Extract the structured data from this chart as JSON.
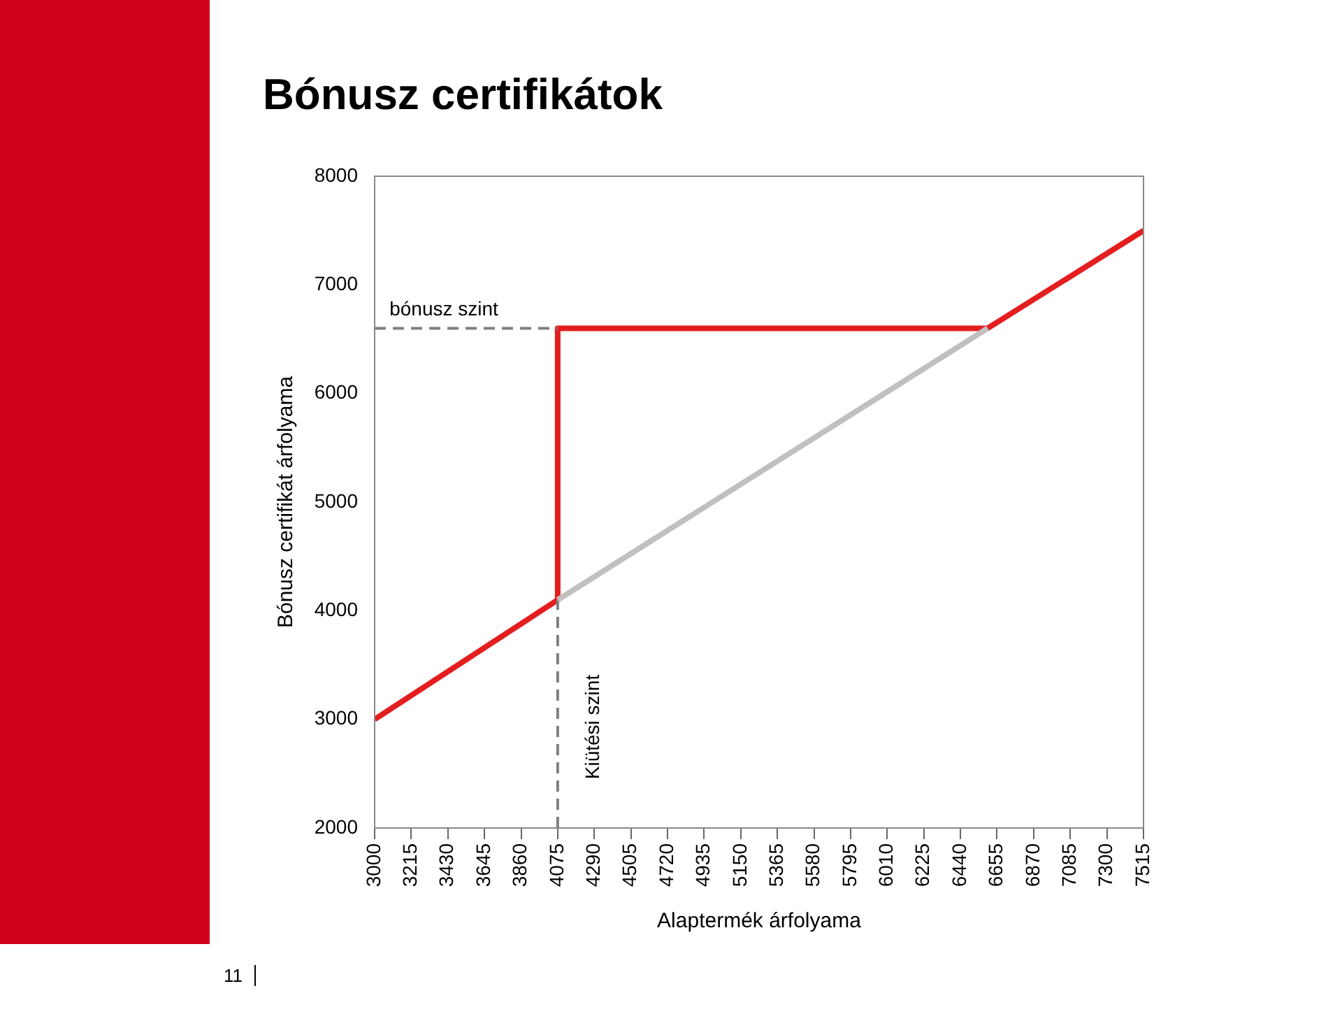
{
  "chart_data": {
    "type": "line",
    "title": "Bónusz certifikátok",
    "xlabel": "Alaptermék árfolyama",
    "ylabel": "Bónusz certifikát árfolyama",
    "xlim": [
      3000,
      7515
    ],
    "xticks": [
      3000,
      3215,
      3430,
      3645,
      3860,
      4075,
      4290,
      4505,
      4720,
      4935,
      5150,
      5365,
      5580,
      5795,
      6010,
      6225,
      6440,
      6655,
      6870,
      7085,
      7300,
      7515
    ],
    "ylim": [
      2000,
      8000
    ],
    "yticks": [
      2000,
      3000,
      4000,
      5000,
      6000,
      7000,
      8000
    ],
    "grid": false,
    "legend": false,
    "marker": "none",
    "series": [
      {
        "color": "#c0c0c0",
        "x": [
          4075,
          6600
        ],
        "values": [
          4100,
          6600
        ]
      },
      {
        "color": "#808080",
        "line_style": "dashed",
        "x": [
          3000,
          4075
        ],
        "values": [
          6600,
          6600
        ]
      },
      {
        "color": "#808080",
        "line_style": "dashed",
        "x": [
          4075,
          4075
        ],
        "values": [
          2000,
          4100
        ]
      },
      {
        "color": "#e41e1e",
        "x": [
          3000,
          4075,
          4075,
          6600,
          7515
        ],
        "values": [
          3000,
          4100,
          6600,
          6600,
          7500
        ]
      }
    ],
    "annotations": [
      "bónusz szint",
      "Kiütési szint",
      "11"
    ]
  }
}
